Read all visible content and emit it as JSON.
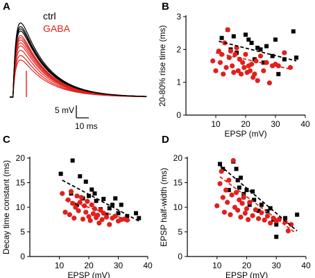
{
  "colors": {
    "ctrl": "#000000",
    "gaba": "#e0201c",
    "axis": "#000000"
  },
  "panels": {
    "A": {
      "letter": "A",
      "legend": [
        {
          "label": "ctrl",
          "color": "#000000"
        },
        {
          "label": "GABA",
          "color": "#e0201c"
        }
      ],
      "scalebar": {
        "voltage_label": "5 mV",
        "time_label": "10 ms"
      }
    },
    "B": {
      "letter": "B"
    },
    "C": {
      "letter": "C"
    },
    "D": {
      "letter": "D"
    }
  },
  "chart_data": [
    {
      "panel": "A",
      "type": "line",
      "x_unit": "ms",
      "y_unit": "mV",
      "traces_ctrl_peak_mv": [
        10.0,
        9.5,
        9.2,
        8.9
      ],
      "traces_gaba_peak_mv": [
        8.3,
        8.0,
        7.7,
        7.3,
        6.9,
        6.3,
        5.6,
        5.0
      ]
    },
    {
      "panel": "B",
      "type": "scatter",
      "xlabel": "EPSP (mV)",
      "ylabel": "20-80% rise time (ms)",
      "xlim": [
        0,
        40
      ],
      "ylim": [
        0,
        3
      ],
      "xticks": [
        10,
        20,
        30,
        40
      ],
      "yticks": [
        0,
        1,
        2,
        3
      ],
      "series": [
        {
          "name": "ctrl",
          "color": "#000000",
          "marker": "square",
          "points": [
            [
              12,
              2.35
            ],
            [
              14,
              2.6
            ],
            [
              15,
              2.0
            ],
            [
              16,
              2.4
            ],
            [
              17,
              1.9
            ],
            [
              20,
              2.45
            ],
            [
              21,
              2.3
            ],
            [
              22,
              2.2
            ],
            [
              23,
              1.7
            ],
            [
              24,
              2.05
            ],
            [
              25,
              2.0
            ],
            [
              26,
              1.6
            ],
            [
              27,
              2.1
            ],
            [
              29,
              1.8
            ],
            [
              30,
              2.3
            ],
            [
              31,
              1.25
            ],
            [
              33,
              1.7
            ],
            [
              36,
              2.55
            ],
            [
              37,
              1.75
            ]
          ],
          "trend": [
            [
              11,
              2.25
            ],
            [
              37,
              1.65
            ]
          ]
        },
        {
          "name": "GABA",
          "color": "#e0201c",
          "marker": "circle",
          "points": [
            [
              9,
              1.65
            ],
            [
              10,
              1.35
            ],
            [
              11,
              1.95
            ],
            [
              11.5,
              1.6
            ],
            [
              12,
              1.85
            ],
            [
              12.5,
              1.25
            ],
            [
              13,
              2.2
            ],
            [
              13.5,
              1.45
            ],
            [
              14,
              2.6
            ],
            [
              14.5,
              1.75
            ],
            [
              15,
              1.95
            ],
            [
              15.5,
              1.5
            ],
            [
              16,
              1.3
            ],
            [
              16.5,
              1.85
            ],
            [
              17,
              2.05
            ],
            [
              17.5,
              1.35
            ],
            [
              18,
              1.7
            ],
            [
              18.5,
              1.25
            ],
            [
              19,
              1.6
            ],
            [
              19.5,
              1.45
            ],
            [
              20,
              1.85
            ],
            [
              20.5,
              1.3
            ],
            [
              21,
              1.5
            ],
            [
              21.5,
              1.35
            ],
            [
              22,
              1.55
            ],
            [
              22.5,
              1.15
            ],
            [
              23,
              1.25
            ],
            [
              23.5,
              1.65
            ],
            [
              24,
              1.05
            ],
            [
              25,
              1.8
            ],
            [
              26,
              1.35
            ],
            [
              27,
              1.6
            ],
            [
              28,
              0.98
            ],
            [
              29,
              1.5
            ],
            [
              30,
              1.55
            ],
            [
              31,
              1.5
            ],
            [
              33,
              1.9
            ],
            [
              35,
              1.45
            ]
          ],
          "trend": [
            [
              10,
              1.9
            ],
            [
              35,
              1.4
            ]
          ]
        }
      ]
    },
    {
      "panel": "C",
      "type": "scatter",
      "xlabel": "EPSP (mV)",
      "ylabel": "Decay time constant (ms)",
      "xlim": [
        0,
        40
      ],
      "ylim": [
        0,
        20
      ],
      "xticks": [
        10,
        20,
        30,
        40
      ],
      "yticks": [
        0,
        5,
        10,
        15,
        20
      ],
      "series": [
        {
          "name": "ctrl",
          "color": "#000000",
          "marker": "square",
          "points": [
            [
              10.5,
              16.8
            ],
            [
              14.5,
              19.5
            ],
            [
              14,
              12.8
            ],
            [
              16,
              10.5
            ],
            [
              17,
              16.3
            ],
            [
              18,
              11.8
            ],
            [
              19,
              15.2
            ],
            [
              20,
              12.3
            ],
            [
              21,
              13.6
            ],
            [
              22,
              12.8
            ],
            [
              22.5,
              11.3
            ],
            [
              24,
              9.6
            ],
            [
              25,
              11.7
            ],
            [
              26,
              8.5
            ],
            [
              27,
              9.8
            ],
            [
              28,
              10.5
            ],
            [
              29,
              11.8
            ],
            [
              30,
              8.8
            ],
            [
              31,
              10.5
            ],
            [
              33,
              8.2
            ],
            [
              36,
              8.8
            ],
            [
              37,
              7.8
            ]
          ],
          "trend": [
            [
              11,
              15.5
            ],
            [
              37,
              7.2
            ]
          ]
        },
        {
          "name": "GABA",
          "color": "#e0201c",
          "marker": "circle",
          "points": [
            [
              11,
              12.8
            ],
            [
              12,
              9.0
            ],
            [
              13,
              11.5
            ],
            [
              13.5,
              8.5
            ],
            [
              14,
              13.2
            ],
            [
              14.5,
              10.8
            ],
            [
              15,
              7.8
            ],
            [
              15.5,
              10.0
            ],
            [
              16,
              12.3
            ],
            [
              16.5,
              9.3
            ],
            [
              17,
              11.0
            ],
            [
              17.5,
              12.0
            ],
            [
              18,
              7.6
            ],
            [
              18.5,
              10.3
            ],
            [
              19,
              9.0
            ],
            [
              19.5,
              11.2
            ],
            [
              20,
              8.1
            ],
            [
              20.5,
              7.3
            ],
            [
              21,
              10.5
            ],
            [
              21.5,
              8.7
            ],
            [
              22,
              9.7
            ],
            [
              22.5,
              7.9
            ],
            [
              23,
              8.4
            ],
            [
              23.5,
              6.8
            ],
            [
              24,
              9.4
            ],
            [
              24.5,
              7.5
            ],
            [
              25,
              8.8
            ],
            [
              26,
              8.0
            ],
            [
              27,
              6.5
            ],
            [
              28,
              7.8
            ],
            [
              29,
              8.2
            ],
            [
              30,
              7.2
            ],
            [
              31,
              7.5
            ],
            [
              32,
              7.6
            ],
            [
              33,
              7.4
            ]
          ],
          "trend": [
            [
              12,
              11.5
            ],
            [
              34,
              7.3
            ]
          ]
        }
      ]
    },
    {
      "panel": "D",
      "type": "scatter",
      "xlabel": "EPSP (mV)",
      "ylabel": "EPSP half-width (ms)",
      "xlim": [
        0,
        40
      ],
      "ylim": [
        0,
        20
      ],
      "xticks": [
        10,
        20,
        30,
        40
      ],
      "yticks": [
        0,
        5,
        10,
        15,
        20
      ],
      "series": [
        {
          "name": "ctrl",
          "color": "#000000",
          "marker": "square",
          "points": [
            [
              11,
              18.8
            ],
            [
              12,
              17.8
            ],
            [
              14,
              13.5
            ],
            [
              15.5,
              19.3
            ],
            [
              16.5,
              17.8
            ],
            [
              17,
              15.5
            ],
            [
              17.5,
              14.0
            ],
            [
              18,
              16.0
            ],
            [
              19,
              12.7
            ],
            [
              20,
              13.5
            ],
            [
              21,
              10.5
            ],
            [
              22,
              13.2
            ],
            [
              22.5,
              11.5
            ],
            [
              24,
              9.3
            ],
            [
              25,
              10.5
            ],
            [
              27,
              9.2
            ],
            [
              28,
              9.8
            ],
            [
              29,
              7.5
            ],
            [
              30,
              6.5
            ],
            [
              30,
              4.0
            ],
            [
              33,
              7.8
            ],
            [
              37,
              8.5
            ]
          ],
          "trend": [
            [
              11,
              18.5
            ],
            [
              37,
              5.2
            ]
          ]
        },
        {
          "name": "GABA",
          "color": "#e0201c",
          "marker": "circle",
          "points": [
            [
              10,
              10.3
            ],
            [
              11,
              14.8
            ],
            [
              11.5,
              17.3
            ],
            [
              12,
              12.0
            ],
            [
              12.5,
              9.0
            ],
            [
              13,
              13.5
            ],
            [
              13.5,
              11.0
            ],
            [
              14,
              15.5
            ],
            [
              14.5,
              8.5
            ],
            [
              15,
              12.5
            ],
            [
              15.5,
              19.5
            ],
            [
              16,
              10.0
            ],
            [
              16.5,
              13.0
            ],
            [
              17,
              9.4
            ],
            [
              17.5,
              11.5
            ],
            [
              18,
              8.0
            ],
            [
              18.5,
              10.8
            ],
            [
              19,
              12.0
            ],
            [
              19.5,
              8.8
            ],
            [
              20,
              9.7
            ],
            [
              20.5,
              7.5
            ],
            [
              21,
              11.0
            ],
            [
              22,
              8.3
            ],
            [
              23,
              9.5
            ],
            [
              24,
              7.7
            ],
            [
              25,
              8.9
            ],
            [
              26,
              7.4
            ],
            [
              27,
              8.2
            ],
            [
              28,
              6.8
            ],
            [
              29,
              7.8
            ],
            [
              30,
              7.2
            ],
            [
              31,
              7.6
            ],
            [
              33,
              7.0
            ],
            [
              34,
              5.2
            ],
            [
              35,
              6.5
            ]
          ],
          "trend": [
            [
              11,
              16.2
            ],
            [
              36,
              5.0
            ]
          ]
        }
      ]
    }
  ]
}
